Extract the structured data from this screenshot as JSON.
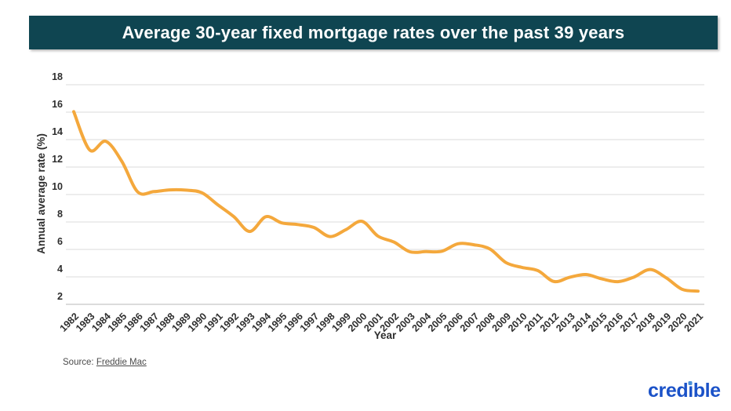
{
  "banner": {
    "title": "Average 30-year fixed mortgage rates over the past 39 years"
  },
  "chart_data": {
    "type": "line",
    "title": "Average 30-year fixed mortgage rates over the past 39 years",
    "xlabel": "Year",
    "ylabel": "Annual average rate (%)",
    "x": [
      1982,
      1983,
      1984,
      1985,
      1986,
      1987,
      1988,
      1989,
      1990,
      1991,
      1992,
      1993,
      1994,
      1995,
      1996,
      1997,
      1998,
      1999,
      2000,
      2001,
      2002,
      2003,
      2004,
      2005,
      2006,
      2007,
      2008,
      2009,
      2010,
      2011,
      2012,
      2013,
      2014,
      2015,
      2016,
      2017,
      2018,
      2019,
      2020,
      2021
    ],
    "y": [
      16.04,
      13.24,
      13.88,
      12.43,
      10.19,
      10.21,
      10.34,
      10.32,
      10.13,
      9.25,
      8.39,
      7.31,
      8.38,
      7.93,
      7.81,
      7.6,
      6.94,
      7.44,
      8.05,
      6.97,
      6.54,
      5.83,
      5.84,
      5.87,
      6.41,
      6.34,
      6.03,
      5.04,
      4.69,
      4.45,
      3.66,
      3.98,
      4.17,
      3.85,
      3.65,
      3.99,
      4.54,
      3.94,
      3.1,
      2.96
    ],
    "ylim": [
      2,
      18
    ],
    "y_ticks": [
      2,
      4,
      6,
      8,
      10,
      12,
      14,
      16,
      18
    ],
    "grid": "horizontal",
    "legend": "none",
    "line_color": "#F4A83C",
    "grid_color": "#E2E2E2",
    "axis_line_color": "#C6C6C6"
  },
  "footer": {
    "source_label": "Source:",
    "source_link_text": "Freddie Mac"
  },
  "branding": {
    "logo_prefix": "cred",
    "logo_i": "ı",
    "logo_suffix": "ble",
    "logo_full_text": "credible",
    "logo_color": "#1B52C8",
    "logo_dot_color": "#4A90D9"
  },
  "colors": {
    "banner_bg": "#0F4551",
    "banner_text": "#FFFFFF"
  }
}
